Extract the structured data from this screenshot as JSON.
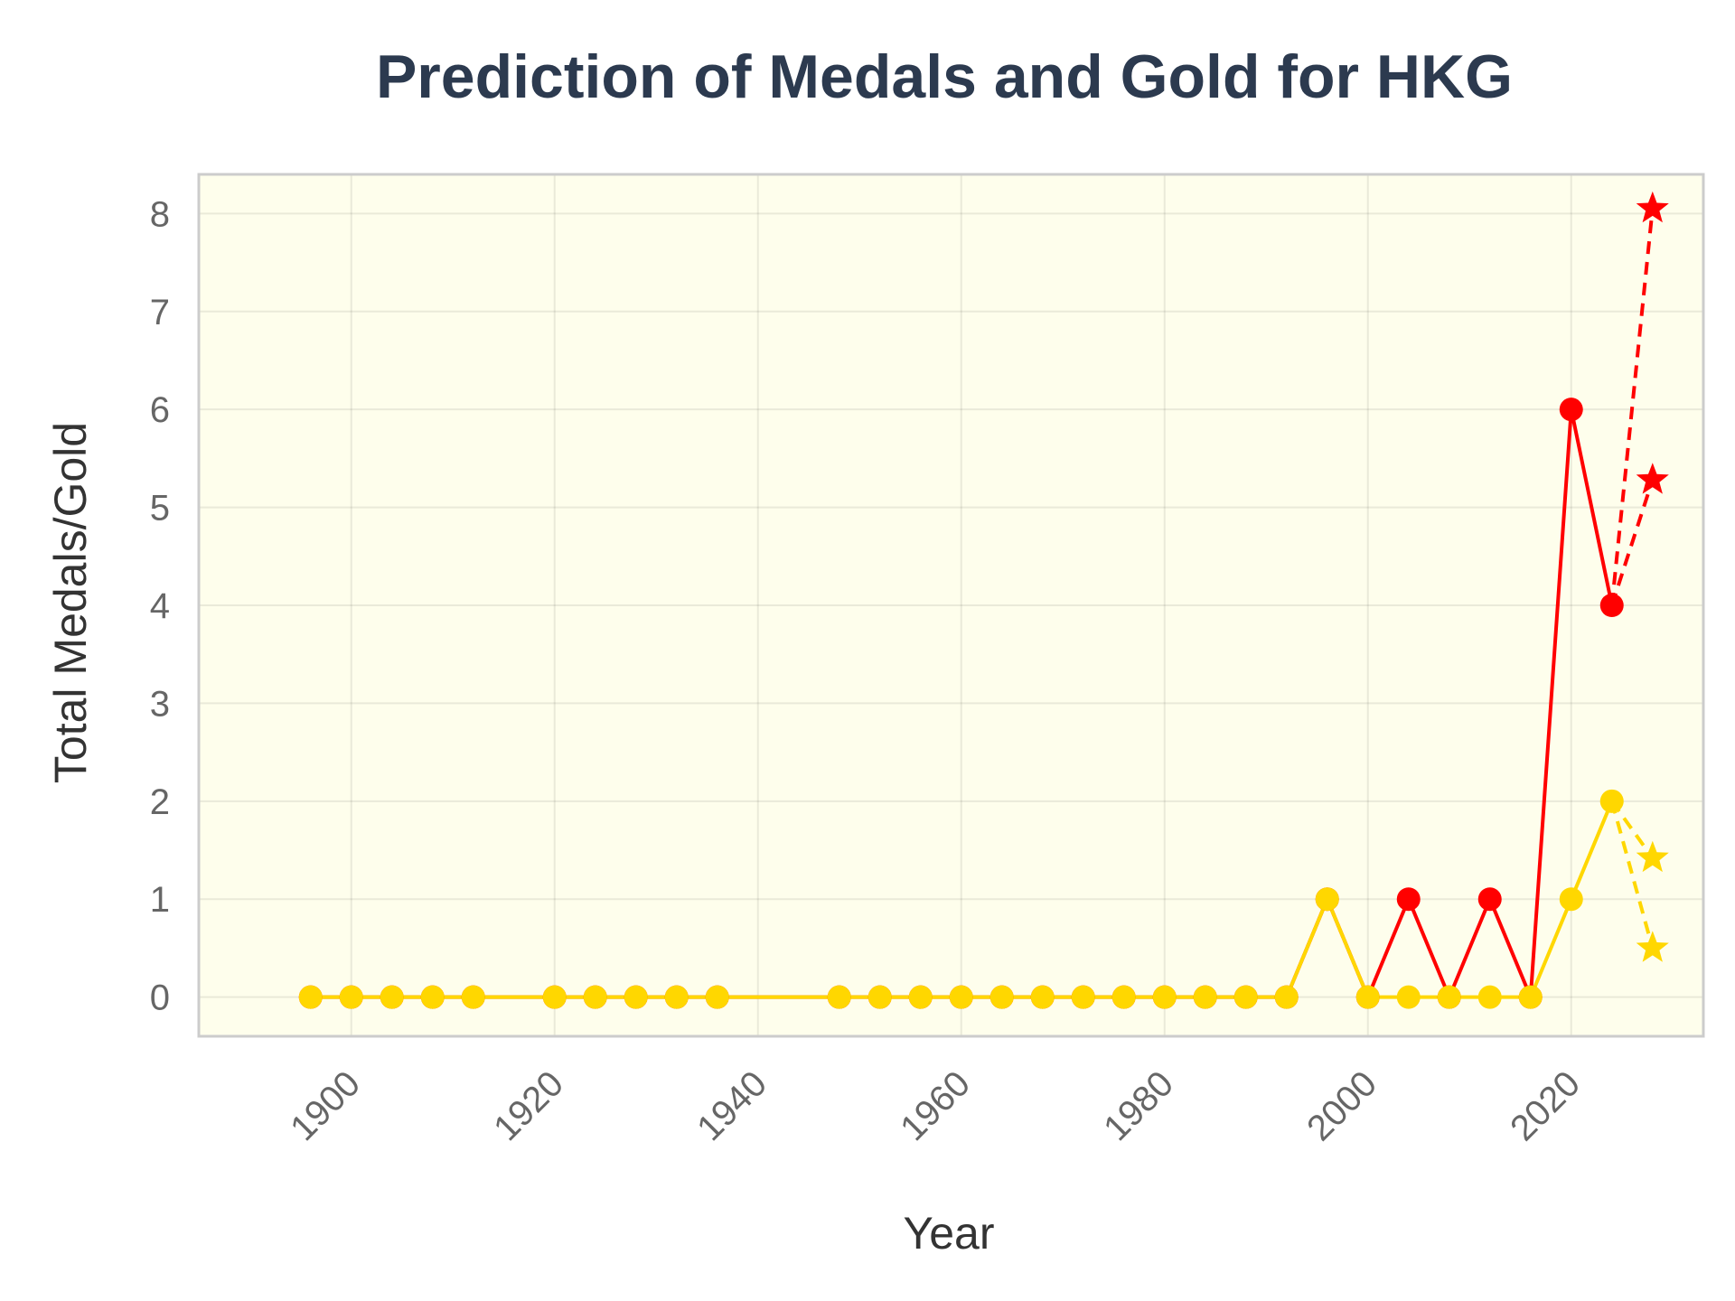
{
  "chart_data": {
    "type": "line",
    "title": "Prediction of Medals and Gold for HKG",
    "xlabel": "Year",
    "ylabel": "Total Medals/Gold",
    "xlim": [
      1885,
      2033
    ],
    "ylim": [
      -0.4,
      8.4
    ],
    "xticks": [
      1900,
      1920,
      1940,
      1960,
      1980,
      2000,
      2020
    ],
    "yticks": [
      0,
      1,
      2,
      3,
      4,
      5,
      6,
      7,
      8
    ],
    "grid": true,
    "background": "#fefeec",
    "colors": {
      "total": "#ff0000",
      "gold": "#ffd700"
    },
    "series": [
      {
        "key": "total",
        "x": [
          1896,
          1900,
          1904,
          1908,
          1912,
          1920,
          1924,
          1928,
          1932,
          1936,
          1948,
          1952,
          1956,
          1960,
          1964,
          1968,
          1972,
          1976,
          1980,
          1984,
          1988,
          1992,
          1996,
          2000,
          2004,
          2008,
          2012,
          2016,
          2020,
          2024
        ],
        "y": [
          0,
          0,
          0,
          0,
          0,
          0,
          0,
          0,
          0,
          0,
          0,
          0,
          0,
          0,
          0,
          0,
          0,
          0,
          0,
          0,
          0,
          0,
          1,
          0,
          1,
          0,
          1,
          0,
          6,
          4
        ]
      },
      {
        "key": "gold",
        "x": [
          1896,
          1900,
          1904,
          1908,
          1912,
          1920,
          1924,
          1928,
          1932,
          1936,
          1948,
          1952,
          1956,
          1960,
          1964,
          1968,
          1972,
          1976,
          1980,
          1984,
          1988,
          1992,
          1996,
          2000,
          2004,
          2008,
          2012,
          2016,
          2020,
          2024
        ],
        "y": [
          0,
          0,
          0,
          0,
          0,
          0,
          0,
          0,
          0,
          0,
          0,
          0,
          0,
          0,
          0,
          0,
          0,
          0,
          0,
          0,
          0,
          0,
          1,
          0,
          0,
          0,
          0,
          0,
          1,
          2
        ]
      }
    ],
    "predictions": [
      {
        "key": "total",
        "from": [
          2024,
          4
        ],
        "points": [
          [
            2028,
            8.05
          ],
          [
            2028,
            5.28
          ]
        ]
      },
      {
        "key": "gold",
        "from": [
          2024,
          2
        ],
        "points": [
          [
            2028,
            1.42
          ],
          [
            2028,
            0.5
          ]
        ]
      }
    ]
  }
}
